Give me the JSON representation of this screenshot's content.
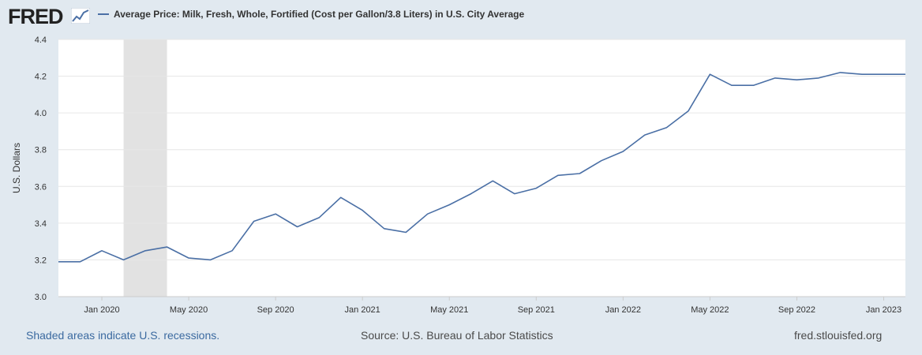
{
  "header": {
    "logo_text": "FRED",
    "series_title": "Average Price: Milk, Fresh, Whole, Fortified (Cost per Gallon/3.8 Liters) in U.S. City Average"
  },
  "footer": {
    "recession_note": "Shaded areas indicate U.S. recessions.",
    "source": "Source: U.S. Bureau of Labor Statistics",
    "site": "fred.stlouisfed.org"
  },
  "colors": {
    "line": "#4a6fa5",
    "recession": "#e2e2e2",
    "grid": "#e6e6e6",
    "plot_bg": "#ffffff",
    "page_bg": "#e1e9f0"
  },
  "chart_data": {
    "type": "line",
    "title": "Average Price: Milk, Fresh, Whole, Fortified (Cost per Gallon/3.8 Liters) in U.S. City Average",
    "xlabel": "",
    "ylabel": "U.S. Dollars",
    "ylim": [
      3.0,
      4.4
    ],
    "yticks": [
      3.0,
      3.2,
      3.4,
      3.6,
      3.8,
      4.0,
      4.2,
      4.4
    ],
    "ytick_labels": [
      "3.0",
      "3.2",
      "3.4",
      "3.6",
      "3.8",
      "4.0",
      "4.2",
      "4.4"
    ],
    "x_start": "Nov 2019",
    "x_end": "Feb 2023",
    "xtick_labels": [
      "Jan 2020",
      "May 2020",
      "Sep 2020",
      "Jan 2021",
      "May 2021",
      "Sep 2021",
      "Jan 2022",
      "May 2022",
      "Sep 2022",
      "Jan 2023"
    ],
    "xtick_index": [
      2,
      6,
      10,
      14,
      18,
      22,
      26,
      30,
      34,
      38
    ],
    "recession": {
      "start": "Feb 2020",
      "end": "Apr 2020",
      "start_index": 3,
      "end_index": 5
    },
    "grid": true,
    "series": [
      {
        "name": "Average Price: Milk, Fresh, Whole, Fortified (Cost per Gallon/3.8 Liters) in U.S. City Average",
        "x": [
          "Nov 2019",
          "Dec 2019",
          "Jan 2020",
          "Feb 2020",
          "Mar 2020",
          "Apr 2020",
          "May 2020",
          "Jun 2020",
          "Jul 2020",
          "Aug 2020",
          "Sep 2020",
          "Oct 2020",
          "Nov 2020",
          "Dec 2020",
          "Jan 2021",
          "Feb 2021",
          "Mar 2021",
          "Apr 2021",
          "May 2021",
          "Jun 2021",
          "Jul 2021",
          "Aug 2021",
          "Sep 2021",
          "Oct 2021",
          "Nov 2021",
          "Dec 2021",
          "Jan 2022",
          "Feb 2022",
          "Mar 2022",
          "Apr 2022",
          "May 2022",
          "Jun 2022",
          "Jul 2022",
          "Aug 2022",
          "Sep 2022",
          "Oct 2022",
          "Nov 2022",
          "Dec 2022",
          "Jan 2023",
          "Feb 2023"
        ],
        "values": [
          3.19,
          3.19,
          3.25,
          3.2,
          3.25,
          3.27,
          3.21,
          3.2,
          3.25,
          3.41,
          3.45,
          3.38,
          3.43,
          3.54,
          3.47,
          3.37,
          3.35,
          3.45,
          3.5,
          3.56,
          3.63,
          3.56,
          3.59,
          3.66,
          3.67,
          3.74,
          3.79,
          3.88,
          3.92,
          4.01,
          4.21,
          4.15,
          4.15,
          4.19,
          4.18,
          4.19,
          4.22,
          4.21,
          4.21,
          4.21
        ]
      }
    ]
  }
}
